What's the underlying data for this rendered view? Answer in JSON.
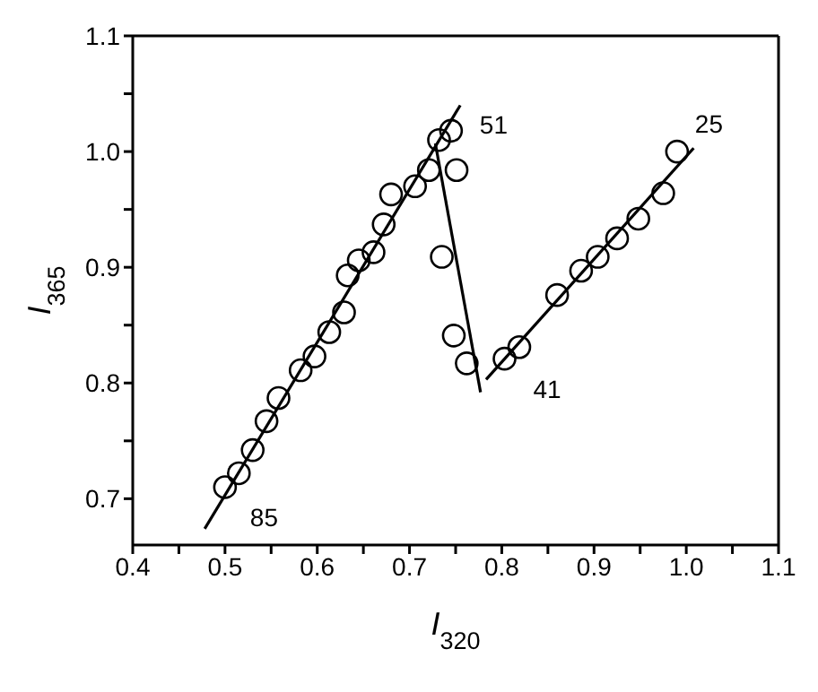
{
  "chart_data": {
    "type": "scatter",
    "xlabel": "I$_{320}$",
    "ylabel": "I$_{365}$",
    "xlim": [
      0.4,
      1.1
    ],
    "ylim": [
      0.66,
      1.1
    ],
    "xticks": [
      0.4,
      {
        "value": 0.45,
        "label": null
      },
      0.5,
      {
        "value": 0.55,
        "label": null
      },
      0.6,
      {
        "value": 0.65,
        "label": null
      },
      0.7,
      {
        "value": 0.75,
        "label": null
      },
      0.8,
      {
        "value": 0.85,
        "label": null
      },
      0.9,
      {
        "value": 0.95,
        "label": null
      },
      {
        "value": 1,
        "label": "1.0"
      },
      {
        "value": 1.05,
        "label": null
      },
      1.1
    ],
    "yticks": [
      0.7,
      {
        "value": 0.75,
        "label": null
      },
      0.8,
      {
        "value": 0.85,
        "label": null
      },
      0.9,
      {
        "value": 0.95,
        "label": null
      },
      {
        "value": 1,
        "label": "1.0"
      },
      {
        "value": 1.05,
        "label": null
      },
      1.1
    ],
    "grid": false,
    "legend": false,
    "series": [
      {
        "marker": "circle",
        "color": "#000000",
        "x": [
          0.5,
          0.515,
          0.53,
          0.545,
          0.558,
          0.582,
          0.597,
          0.613,
          0.629,
          0.633,
          0.645,
          0.661,
          0.672,
          0.68,
          0.706,
          0.721,
          0.732,
          0.745,
          0.751,
          0.735,
          0.748,
          0.762,
          0.803,
          0.819,
          0.86,
          0.886,
          0.904,
          0.925,
          0.948,
          0.975,
          0.99
        ],
        "values": [
          0.71,
          0.722,
          0.742,
          0.767,
          0.787,
          0.811,
          0.823,
          0.844,
          0.861,
          0.893,
          0.906,
          0.913,
          0.937,
          0.963,
          0.97,
          0.984,
          1.01,
          1.018,
          0.984,
          0.909,
          0.841,
          0.817,
          0.821,
          0.831,
          0.876,
          0.897,
          0.909,
          0.925,
          0.942,
          0.964,
          1.0
        ]
      },
      {
        "type": "line",
        "marker": "none",
        "color": "#000000",
        "x": [
          0.478,
          0.755
        ],
        "values": [
          0.674,
          1.04
        ]
      },
      {
        "type": "line",
        "marker": "none",
        "color": "#000000",
        "x": [
          0.728,
          0.777
        ],
        "values": [
          1.007,
          0.792
        ]
      },
      {
        "type": "line",
        "marker": "none",
        "color": "#000000",
        "x": [
          0.783,
          1.008
        ],
        "values": [
          0.803,
          1.003
        ]
      }
    ],
    "annotations": [
      {
        "text": "85",
        "x": 0.5,
        "y": 0.71
      },
      {
        "text": "51",
        "x": 0.745,
        "y": 1.018
      },
      {
        "text": "41",
        "x": 0.803,
        "y": 0.821
      },
      {
        "text": "25",
        "x": 0.99,
        "y": 1.0
      }
    ]
  }
}
